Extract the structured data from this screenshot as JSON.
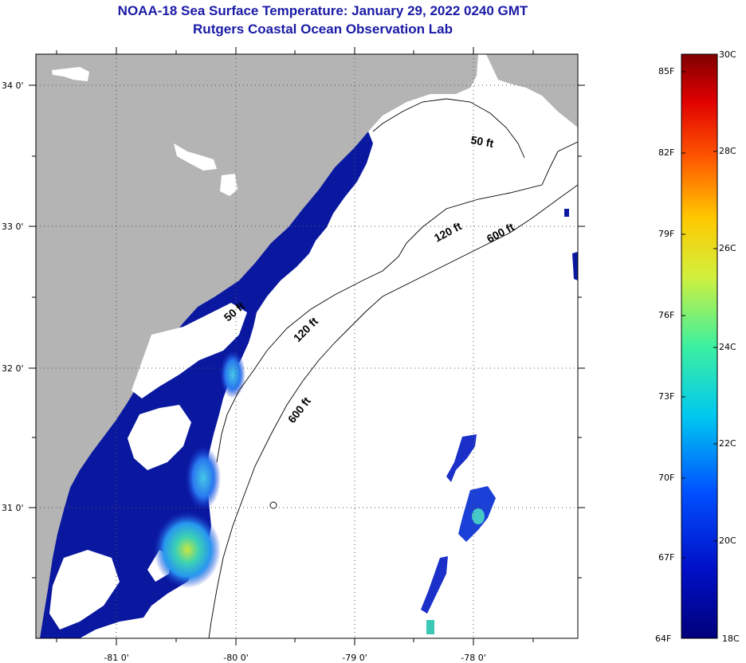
{
  "header": {
    "title": "NOAA-18 Sea Surface Temperature:  January 29, 2022 0240 GMT",
    "subtitle": "Rutgers Coastal Ocean Observation Lab"
  },
  "map": {
    "lon_labels": [
      "-81 0'",
      "-80 0'",
      "-79 0'",
      "-78 0'"
    ],
    "lat_labels": [
      "34 0'",
      "33 0'",
      "32 0'",
      "31 0'"
    ],
    "contours": [
      "50 ft",
      "120 ft",
      "600 ft",
      "50 ft",
      "120 ft",
      "600 ft"
    ],
    "colors": {
      "land": "#b4b4b4",
      "ocean_cold": "#0a18a0",
      "cloud": "#ffffff"
    }
  },
  "colorbar": {
    "fahrenheit": [
      "85F",
      "82F",
      "79F",
      "76F",
      "73F",
      "70F",
      "67F",
      "64F"
    ],
    "celsius": [
      "30C",
      "28C",
      "26C",
      "24C",
      "22C",
      "20C",
      "18C"
    ]
  }
}
